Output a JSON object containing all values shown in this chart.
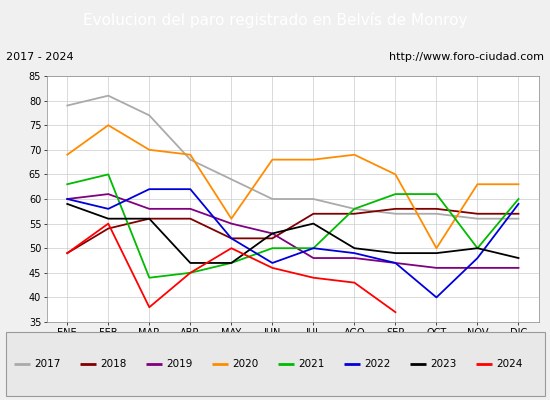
{
  "title": "Evolucion del paro registrado en Belvís de Monroy",
  "subtitle_left": "2017 - 2024",
  "subtitle_right": "http://www.foro-ciudad.com",
  "months": [
    "ENE",
    "FEB",
    "MAR",
    "ABR",
    "MAY",
    "JUN",
    "JUL",
    "AGO",
    "SEP",
    "OCT",
    "NOV",
    "DIC"
  ],
  "ylim": [
    35,
    85
  ],
  "yticks": [
    35,
    40,
    45,
    50,
    55,
    60,
    65,
    70,
    75,
    80,
    85
  ],
  "series": {
    "2017": {
      "color": "#aaaaaa",
      "values": [
        79,
        81,
        77,
        68,
        64,
        60,
        60,
        58,
        57,
        57,
        56,
        56
      ]
    },
    "2018": {
      "color": "#800000",
      "values": [
        49,
        54,
        56,
        56,
        52,
        52,
        57,
        57,
        58,
        58,
        57,
        57
      ]
    },
    "2019": {
      "color": "#800080",
      "values": [
        60,
        61,
        58,
        58,
        55,
        53,
        48,
        48,
        47,
        46,
        46,
        46
      ]
    },
    "2020": {
      "color": "#ff8c00",
      "values": [
        69,
        75,
        70,
        69,
        56,
        68,
        68,
        69,
        65,
        50,
        63,
        63
      ]
    },
    "2021": {
      "color": "#00bb00",
      "values": [
        63,
        65,
        44,
        45,
        47,
        50,
        50,
        58,
        61,
        61,
        50,
        60
      ]
    },
    "2022": {
      "color": "#0000dd",
      "values": [
        60,
        58,
        62,
        62,
        52,
        47,
        50,
        49,
        47,
        40,
        48,
        59
      ]
    },
    "2023": {
      "color": "#000000",
      "values": [
        59,
        56,
        56,
        47,
        47,
        53,
        55,
        50,
        49,
        49,
        50,
        48
      ]
    },
    "2024": {
      "color": "#ff0000",
      "values": [
        49,
        55,
        38,
        45,
        50,
        46,
        44,
        43,
        37,
        null,
        null,
        null
      ]
    }
  },
  "background_color": "#f0f0f0",
  "plot_background": "#ffffff",
  "title_bg": "#4472c4",
  "subtitle_bg": "#d4d4d4",
  "legend_bg": "#e8e8e8",
  "title_fontsize": 11,
  "subtitle_fontsize": 8,
  "tick_fontsize": 7,
  "legend_fontsize": 7.5
}
